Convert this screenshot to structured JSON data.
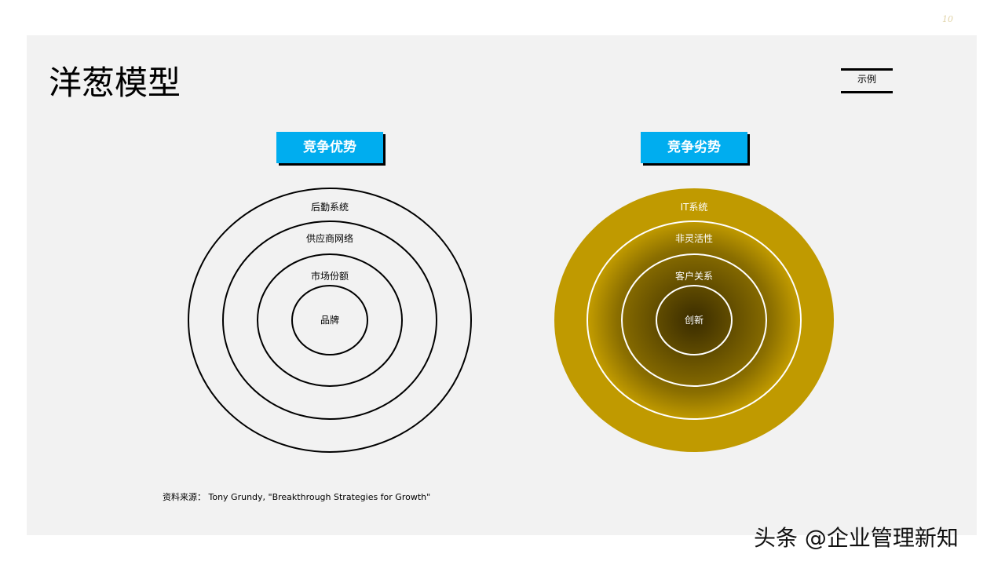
{
  "page_number": "10",
  "title": "洋葱模型",
  "legend": "示例",
  "advantage": {
    "label": "竞争优势",
    "rings": [
      "后勤系统",
      "供应商网络",
      "市场份额",
      "品牌"
    ]
  },
  "disadvantage": {
    "label": "竞争劣势",
    "rings": [
      "IT系统",
      "非灵活性",
      "客户关系",
      "创新"
    ],
    "color": "#c09a00"
  },
  "source": "资料来源： Tony Grundy, \"Breakthrough Strategies for Growth\"",
  "watermark": "头条 @企业管理新知"
}
